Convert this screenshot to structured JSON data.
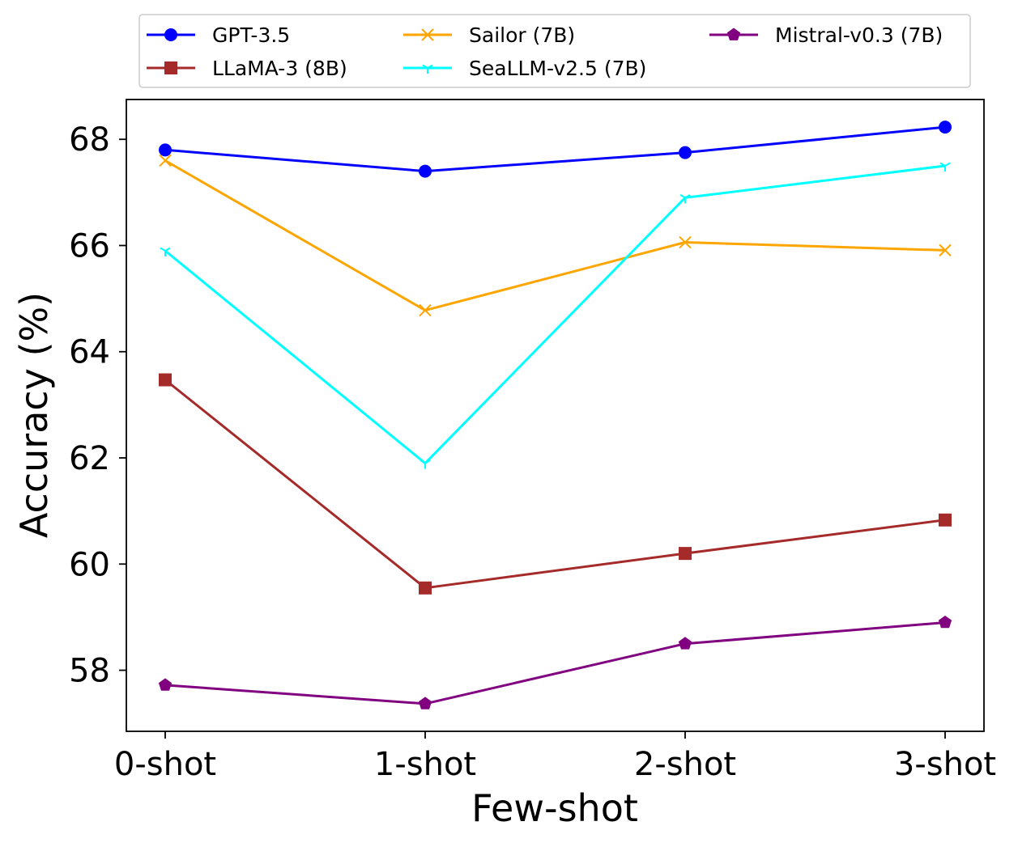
{
  "chart_data": {
    "type": "line",
    "categories": [
      "0-shot",
      "1-shot",
      "2-shot",
      "3-shot"
    ],
    "xlabel": "Few-shot",
    "ylabel": "Accuracy (%)",
    "ylim": [
      56.85,
      68.75
    ],
    "yticks": [
      "58",
      "60",
      "62",
      "64",
      "66",
      "68"
    ],
    "grid": false,
    "legend_position": "top, above plot, 3 columns",
    "series": [
      {
        "name": "GPT-3.5",
        "color": "#0000ff",
        "marker": "circle",
        "values": [
          67.8,
          67.4,
          67.75,
          68.23
        ]
      },
      {
        "name": "LLaMA-3 (8B)",
        "color": "#a52a2a",
        "marker": "square",
        "values": [
          63.47,
          59.55,
          60.2,
          60.83
        ]
      },
      {
        "name": "Sailor (7B)",
        "color": "#ffa500",
        "marker": "x",
        "values": [
          67.6,
          64.78,
          66.06,
          65.91
        ]
      },
      {
        "name": "SeaLLM-v2.5 (7B)",
        "color": "#00ffff",
        "marker": "tri",
        "values": [
          65.9,
          61.9,
          66.9,
          67.5
        ]
      },
      {
        "name": "Mistral-v0.3 (7B)",
        "color": "#800080",
        "marker": "pentagon",
        "values": [
          57.72,
          57.37,
          58.5,
          58.9
        ]
      }
    ]
  }
}
